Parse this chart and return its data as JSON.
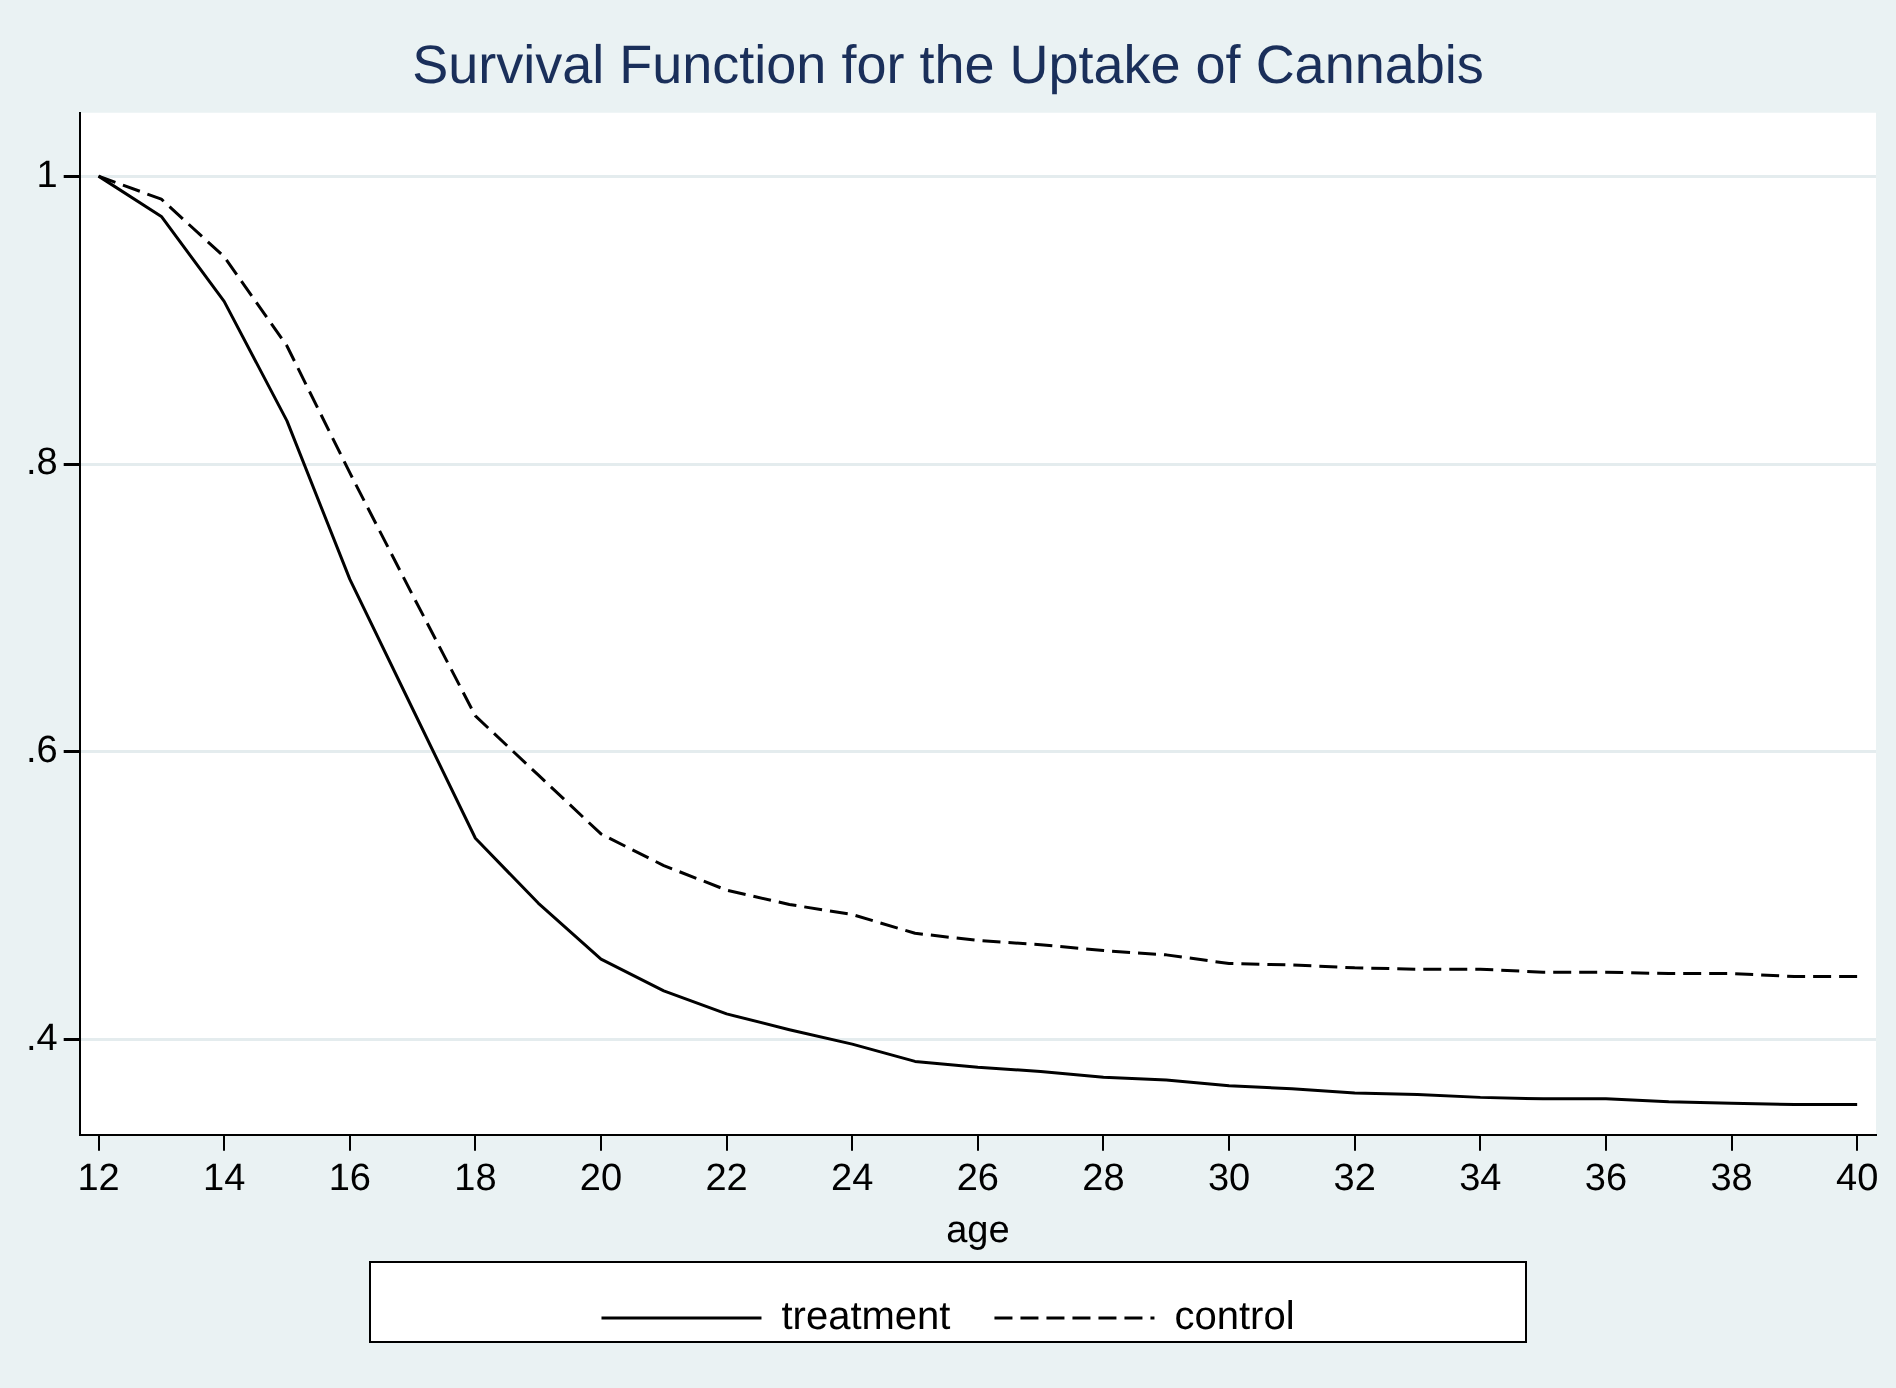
{
  "chart_data": {
    "type": "line",
    "title": "Survival Function for the Uptake of Cannabis",
    "xlabel": "age",
    "x": [
      12,
      13,
      14,
      15,
      16,
      17,
      18,
      19,
      20,
      21,
      22,
      23,
      24,
      25,
      26,
      27,
      28,
      29,
      30,
      31,
      32,
      33,
      34,
      35,
      36,
      37,
      38,
      39,
      40
    ],
    "series": [
      {
        "name": "treatment",
        "color": "#000000",
        "line_style": "solid",
        "values": [
          1,
          0.972,
          0.913,
          0.83,
          0.72,
          0.63,
          0.54,
          0.495,
          0.456,
          0.434,
          0.418,
          0.407,
          0.397,
          0.385,
          0.381,
          0.378,
          0.374,
          0.372,
          0.368,
          0.366,
          0.363,
          0.362,
          0.36,
          0.359,
          0.359,
          0.357,
          0.356,
          0.355,
          0.355
        ]
      },
      {
        "name": "control",
        "color": "#000000",
        "line_style": "dashed",
        "values": [
          1,
          0.984,
          0.944,
          0.882,
          0.794,
          0.709,
          0.625,
          0.584,
          0.543,
          0.521,
          0.504,
          0.494,
          0.487,
          0.474,
          0.469,
          0.466,
          0.462,
          0.459,
          0.453,
          0.452,
          0.45,
          0.449,
          0.449,
          0.447,
          0.447,
          0.446,
          0.446,
          0.444,
          0.444
        ]
      }
    ],
    "xlim": [
      11.7,
      40.3
    ],
    "xticks": [
      12,
      14,
      16,
      18,
      20,
      22,
      24,
      26,
      28,
      30,
      32,
      34,
      36,
      38,
      40
    ],
    "ylim": [
      0.334,
      1.044
    ],
    "yticks": [
      {
        "value": 0.4,
        "label": ".4"
      },
      {
        "value": 0.6,
        "label": ".6"
      },
      {
        "value": 0.8,
        "label": ".8"
      },
      1
    ],
    "grid": "y",
    "legend": "bottom",
    "marker": "none"
  }
}
